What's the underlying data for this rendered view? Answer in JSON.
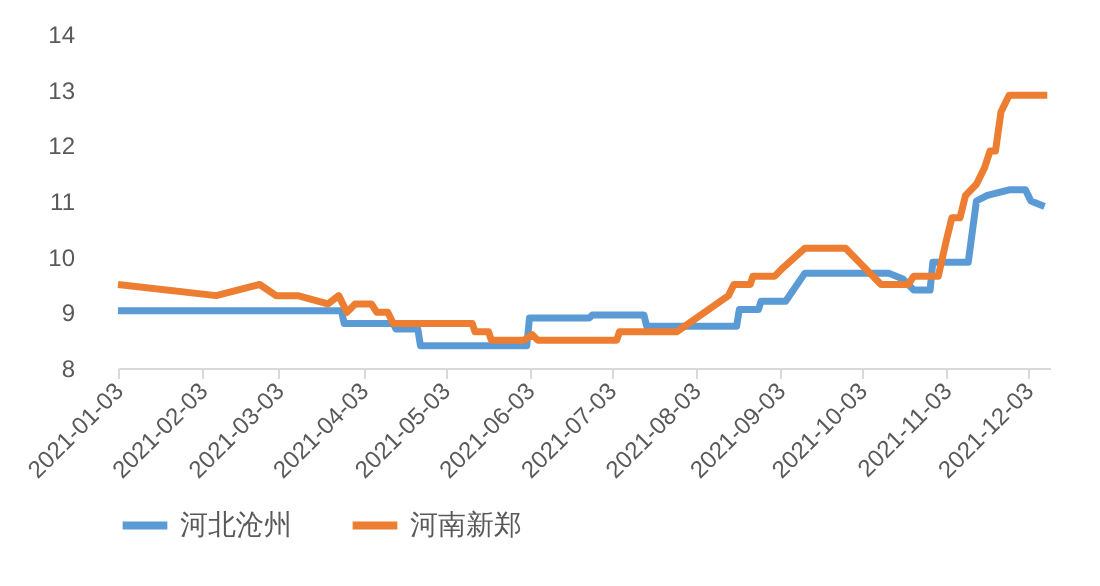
{
  "chart_data": {
    "type": "line",
    "legend": "bottom",
    "grid": false,
    "line_style": "solid",
    "marker": "none",
    "xlim": [
      "2021-01-03",
      "2021-12-11"
    ],
    "xticks": [
      "2021-01-03",
      "2021-02-03",
      "2021-03-03",
      "2021-04-03",
      "2021-05-03",
      "2021-06-03",
      "2021-07-03",
      "2021-08-03",
      "2021-09-03",
      "2021-10-03",
      "2021-11-03",
      "2021-12-03"
    ],
    "ylim": [
      8,
      14
    ],
    "yticks": [
      8,
      9,
      10,
      11,
      12,
      13,
      14
    ],
    "series": [
      {
        "name": "河北沧州",
        "color": "#5b9bd5",
        "x": [
          "2021-01-03",
          "2021-03-26",
          "2021-03-27",
          "2021-04-14",
          "2021-04-15",
          "2021-04-23",
          "2021-04-24",
          "2021-06-02",
          "2021-06-03",
          "2021-06-25",
          "2021-06-26",
          "2021-07-15",
          "2021-07-16",
          "2021-08-18",
          "2021-08-19",
          "2021-08-26",
          "2021-08-27",
          "2021-09-05",
          "2021-09-12",
          "2021-10-13",
          "2021-10-18",
          "2021-10-22",
          "2021-10-28",
          "2021-10-29",
          "2021-11-11",
          "2021-11-14",
          "2021-11-18",
          "2021-11-26",
          "2021-12-02",
          "2021-12-04",
          "2021-12-09"
        ],
        "values": [
          9.03,
          9.03,
          8.8,
          8.8,
          8.7,
          8.7,
          8.4,
          8.4,
          8.9,
          8.9,
          8.95,
          8.95,
          8.75,
          8.75,
          9.05,
          9.05,
          9.2,
          9.2,
          9.7,
          9.7,
          9.6,
          9.4,
          9.4,
          9.9,
          9.9,
          11.0,
          11.1,
          11.2,
          11.2,
          11.0,
          10.9
        ]
      },
      {
        "name": "河南新郑",
        "color": "#ed7d31",
        "x": [
          "2021-01-03",
          "2021-02-08",
          "2021-02-24",
          "2021-03-02",
          "2021-03-10",
          "2021-03-21",
          "2021-03-25",
          "2021-03-28",
          "2021-03-31",
          "2021-04-06",
          "2021-04-08",
          "2021-04-12",
          "2021-04-14",
          "2021-05-13",
          "2021-05-14",
          "2021-05-19",
          "2021-05-20",
          "2021-06-01",
          "2021-06-04",
          "2021-06-06",
          "2021-07-05",
          "2021-07-06",
          "2021-07-27",
          "2021-08-15",
          "2021-08-17",
          "2021-08-23",
          "2021-08-24",
          "2021-09-01",
          "2021-09-04",
          "2021-09-12",
          "2021-09-27",
          "2021-10-10",
          "2021-10-20",
          "2021-10-22",
          "2021-10-31",
          "2021-11-03",
          "2021-11-05",
          "2021-11-08",
          "2021-11-10",
          "2021-11-14",
          "2021-11-17",
          "2021-11-19",
          "2021-11-21",
          "2021-11-23",
          "2021-11-26",
          "2021-12-10"
        ],
        "values": [
          9.5,
          9.3,
          9.5,
          9.3,
          9.3,
          9.15,
          9.3,
          9.0,
          9.15,
          9.15,
          9.0,
          9.0,
          8.8,
          8.8,
          8.65,
          8.65,
          8.5,
          8.5,
          8.6,
          8.5,
          8.5,
          8.65,
          8.65,
          9.3,
          9.5,
          9.5,
          9.65,
          9.65,
          9.8,
          10.15,
          10.15,
          9.5,
          9.5,
          9.65,
          9.65,
          10.3,
          10.7,
          10.7,
          11.1,
          11.3,
          11.6,
          11.9,
          11.9,
          12.6,
          12.9,
          12.9
        ]
      }
    ]
  }
}
